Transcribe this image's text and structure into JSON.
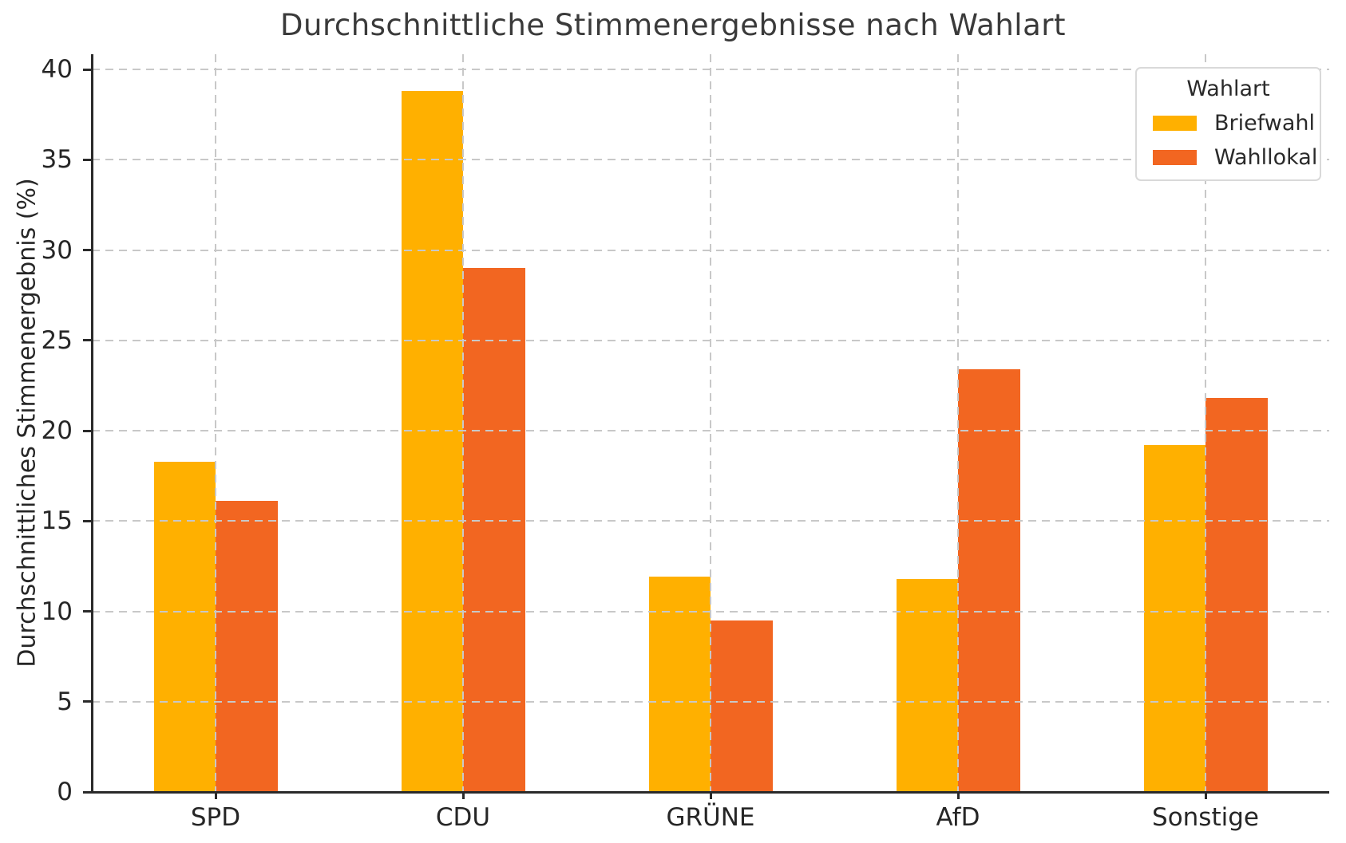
{
  "chart_data": {
    "type": "bar",
    "title": "Durchschnittliche Stimmenergebnisse nach Wahlart",
    "xlabel": "",
    "ylabel": "Durchschnittliches Stimmenergebnis (%)",
    "categories": [
      "SPD",
      "CDU",
      "GRÜNE",
      "AfD",
      "Sonstige"
    ],
    "series": [
      {
        "name": "Briefwahl",
        "color": "#FFB000",
        "values": [
          18.3,
          38.8,
          11.9,
          11.8,
          19.2
        ]
      },
      {
        "name": "Wahllokal",
        "color": "#F26621",
        "values": [
          16.1,
          29.0,
          9.5,
          23.4,
          21.8
        ]
      }
    ],
    "legend_title": "Wahlart",
    "legend_position": "upper right",
    "ylim": [
      0,
      40.84
    ],
    "yticks": [
      0,
      5,
      10,
      15,
      20,
      25,
      30,
      35,
      40
    ],
    "grid": true,
    "grid_style": "dashed",
    "grid_color": "#c8c8c8",
    "axis_color": "#2a2a2a",
    "bar_group_width_fraction": 0.5
  }
}
